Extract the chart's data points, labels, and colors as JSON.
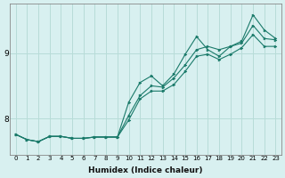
{
  "xlabel": "Humidex (Indice chaleur)",
  "bg_color": "#d8f0f0",
  "grid_color": "#b8dcd8",
  "line_color": "#1a7a6a",
  "xlim": [
    -0.5,
    23.5
  ],
  "ylim": [
    7.45,
    9.75
  ],
  "xticks": [
    0,
    1,
    2,
    3,
    4,
    5,
    6,
    7,
    8,
    9,
    10,
    11,
    12,
    13,
    14,
    15,
    16,
    17,
    18,
    19,
    20,
    21,
    22,
    23
  ],
  "yticks": [
    8,
    9
  ],
  "line1_x": [
    0,
    1,
    2,
    3,
    4,
    5,
    6,
    7,
    8,
    9,
    10,
    11,
    12,
    13,
    14,
    15,
    16,
    17,
    18,
    19,
    20,
    21,
    22,
    23
  ],
  "line1_y": [
    7.76,
    7.68,
    7.65,
    7.73,
    7.73,
    7.7,
    7.7,
    7.72,
    7.72,
    7.72,
    8.05,
    8.35,
    8.5,
    8.48,
    8.62,
    8.82,
    9.05,
    9.1,
    9.05,
    9.1,
    9.15,
    9.42,
    9.22,
    9.2
  ],
  "line2_x": [
    0,
    1,
    2,
    3,
    4,
    5,
    6,
    7,
    8,
    9,
    10,
    11,
    12,
    13,
    14,
    15,
    16,
    17,
    18,
    19,
    20,
    21,
    22,
    23
  ],
  "line2_y": [
    7.76,
    7.68,
    7.65,
    7.73,
    7.73,
    7.7,
    7.7,
    7.72,
    7.72,
    7.72,
    8.25,
    8.55,
    8.65,
    8.5,
    8.68,
    8.98,
    9.25,
    9.05,
    8.95,
    9.1,
    9.18,
    9.58,
    9.35,
    9.22
  ],
  "line3_x": [
    0,
    1,
    2,
    3,
    4,
    5,
    6,
    7,
    8,
    9,
    10,
    11,
    12,
    13,
    14,
    15,
    16,
    17,
    18,
    19,
    20,
    21,
    22,
    23
  ],
  "line3_y": [
    7.76,
    7.68,
    7.65,
    7.73,
    7.73,
    7.7,
    7.7,
    7.72,
    7.72,
    7.72,
    7.98,
    8.3,
    8.42,
    8.42,
    8.52,
    8.72,
    8.95,
    8.98,
    8.9,
    8.98,
    9.08,
    9.28,
    9.1,
    9.1
  ]
}
